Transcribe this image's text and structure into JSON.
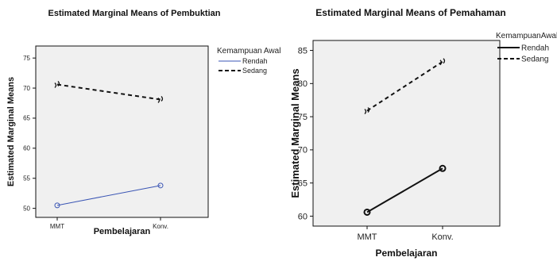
{
  "chart_data": [
    {
      "type": "line",
      "title": "Estimated Marginal Means of Pembuktian",
      "xlabel": "Pembelajaran",
      "ylabel": "Estimated Marginal Means",
      "categories": [
        "MMT",
        "Konv."
      ],
      "ylim": [
        48.5,
        77
      ],
      "yticks": [
        50,
        55,
        60,
        65,
        70,
        75
      ],
      "legend_title": "Kemampuan Awal",
      "legend_position": "right",
      "series": [
        {
          "name": "Rendah",
          "values": [
            50.5,
            53.8
          ],
          "color": "#3a55b4",
          "dash": "solid",
          "marker": "circle"
        },
        {
          "name": "Sedang",
          "values": [
            70.6,
            68.1
          ],
          "color": "#111111",
          "dash": "dashed",
          "marker": "pair"
        }
      ]
    },
    {
      "type": "line",
      "title": "Estimated Marginal Means of Pemahaman",
      "xlabel": "Pembelajaran",
      "ylabel": "Estimated Marginal Means",
      "categories": [
        "MMT",
        "Konv."
      ],
      "ylim": [
        58.5,
        86.5
      ],
      "yticks": [
        60,
        65,
        70,
        75,
        80,
        85
      ],
      "legend_title": "KemampuanAwal",
      "legend_position": "right",
      "series": [
        {
          "name": "Rendah",
          "values": [
            60.6,
            67.2
          ],
          "color": "#111111",
          "dash": "solid",
          "marker": "circle"
        },
        {
          "name": "Sedang",
          "values": [
            75.9,
            83.3
          ],
          "color": "#111111",
          "dash": "dashed",
          "marker": "pair"
        }
      ]
    }
  ]
}
